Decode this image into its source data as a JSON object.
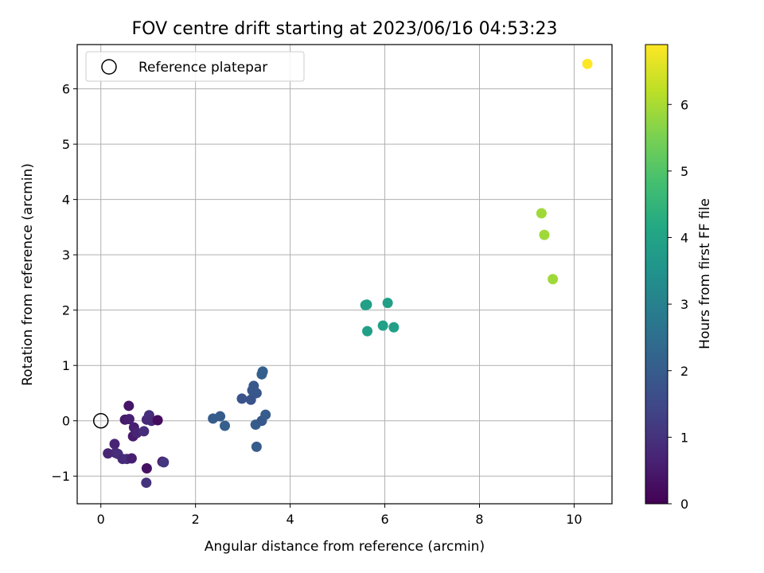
{
  "chart_data": {
    "type": "scatter",
    "title": "FOV centre drift starting at 2023/06/16 04:53:23",
    "xlabel": "Angular distance from reference (arcmin)",
    "ylabel": "Rotation from reference (arcmin)",
    "xlim": [
      -0.5,
      10.8
    ],
    "ylim": [
      -1.5,
      6.8
    ],
    "x_ticks": [
      0,
      2,
      4,
      6,
      8,
      10
    ],
    "y_ticks": [
      -1,
      0,
      1,
      2,
      3,
      4,
      5,
      6
    ],
    "grid": true,
    "legend": {
      "placement": "top-left",
      "entries": [
        "Reference platepar"
      ]
    },
    "colorbar": {
      "label": "Hours from first FF file",
      "range": [
        0,
        6.9
      ],
      "ticks": [
        0,
        1,
        2,
        3,
        4,
        5,
        6
      ],
      "colormap": "viridis"
    },
    "reference_point": {
      "x": 0,
      "y": 0,
      "label": "Reference platepar"
    },
    "points": [
      {
        "x": 0.15,
        "y": -0.59,
        "h": 0.7
      },
      {
        "x": 0.29,
        "y": -0.42,
        "h": 0.7
      },
      {
        "x": 0.31,
        "y": -0.58,
        "h": 0.8
      },
      {
        "x": 0.36,
        "y": -0.6,
        "h": 0.9
      },
      {
        "x": 0.46,
        "y": -0.69,
        "h": 0.8
      },
      {
        "x": 0.55,
        "y": -0.69,
        "h": 0.9
      },
      {
        "x": 0.65,
        "y": -0.68,
        "h": 0.6
      },
      {
        "x": 0.51,
        "y": 0.02,
        "h": 0.5
      },
      {
        "x": 0.6,
        "y": 0.03,
        "h": 0.6
      },
      {
        "x": 0.59,
        "y": 0.27,
        "h": 0.4
      },
      {
        "x": 0.7,
        "y": -0.12,
        "h": 0.6
      },
      {
        "x": 0.68,
        "y": -0.28,
        "h": 0.5
      },
      {
        "x": 0.76,
        "y": -0.22,
        "h": 0.7
      },
      {
        "x": 0.91,
        "y": -0.19,
        "h": 0.9
      },
      {
        "x": 0.97,
        "y": 0.02,
        "h": 0.8
      },
      {
        "x": 1.02,
        "y": 0.1,
        "h": 0.9
      },
      {
        "x": 1.07,
        "y": 0.0,
        "h": 0.8
      },
      {
        "x": 1.2,
        "y": 0.01,
        "h": 0.2
      },
      {
        "x": 0.97,
        "y": -0.86,
        "h": 0.3
      },
      {
        "x": 0.96,
        "y": -1.12,
        "h": 1.0
      },
      {
        "x": 1.3,
        "y": -0.74,
        "h": 0.5
      },
      {
        "x": 1.33,
        "y": -0.75,
        "h": 1.1
      },
      {
        "x": 2.37,
        "y": 0.04,
        "h": 2.0
      },
      {
        "x": 2.52,
        "y": 0.08,
        "h": 2.0
      },
      {
        "x": 2.62,
        "y": -0.09,
        "h": 2.1
      },
      {
        "x": 2.98,
        "y": 0.4,
        "h": 1.8
      },
      {
        "x": 3.17,
        "y": 0.38,
        "h": 1.8
      },
      {
        "x": 3.2,
        "y": 0.55,
        "h": 1.9
      },
      {
        "x": 3.23,
        "y": 0.63,
        "h": 1.9
      },
      {
        "x": 3.29,
        "y": 0.5,
        "h": 1.9
      },
      {
        "x": 3.27,
        "y": -0.07,
        "h": 2.0
      },
      {
        "x": 3.4,
        "y": 0.0,
        "h": 1.9
      },
      {
        "x": 3.29,
        "y": -0.47,
        "h": 2.0
      },
      {
        "x": 3.4,
        "y": 0.84,
        "h": 2.1
      },
      {
        "x": 3.42,
        "y": 0.89,
        "h": 2.1
      },
      {
        "x": 3.48,
        "y": 0.11,
        "h": 2.0
      },
      {
        "x": 5.59,
        "y": 2.09,
        "h": 3.9
      },
      {
        "x": 5.62,
        "y": 2.1,
        "h": 3.9
      },
      {
        "x": 5.63,
        "y": 1.62,
        "h": 3.9
      },
      {
        "x": 5.96,
        "y": 1.72,
        "h": 3.9
      },
      {
        "x": 6.06,
        "y": 2.13,
        "h": 3.9
      },
      {
        "x": 6.19,
        "y": 1.69,
        "h": 3.9
      },
      {
        "x": 9.31,
        "y": 3.75,
        "h": 5.9
      },
      {
        "x": 9.37,
        "y": 3.36,
        "h": 5.9
      },
      {
        "x": 9.55,
        "y": 2.56,
        "h": 5.9
      },
      {
        "x": 10.28,
        "y": 6.45,
        "h": 6.9
      }
    ]
  }
}
